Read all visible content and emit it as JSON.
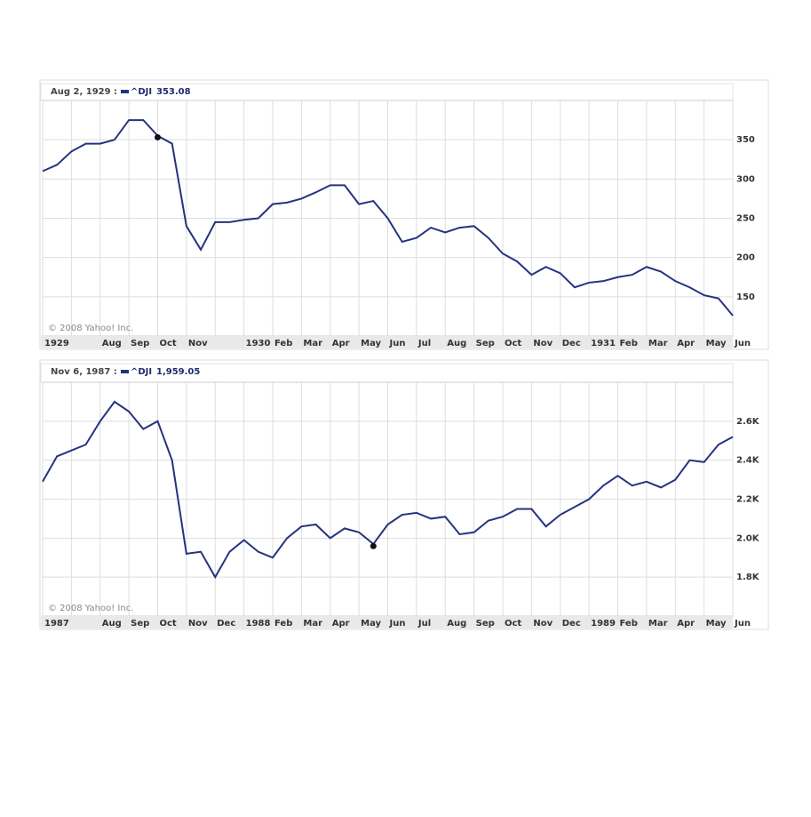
{
  "chart_data": [
    {
      "type": "line",
      "cursor": {
        "label": "Aug 2, 1929 :",
        "value": 353.08
      },
      "copyright": "© 2008 Yahoo! Inc.",
      "categories": [
        "1929",
        null,
        null,
        null,
        "Aug",
        null,
        "Sep",
        null,
        "Oct",
        null,
        "Nov",
        null,
        null,
        null,
        "1930",
        null,
        "Feb",
        null,
        "Mar",
        null,
        "Apr",
        null,
        "May",
        null,
        "Jun",
        null,
        "Jul",
        null,
        "Aug",
        null,
        "Sep",
        null,
        "Oct",
        null,
        "Nov",
        null,
        "Dec",
        null,
        "1931",
        null,
        "Feb",
        null,
        "Mar",
        null,
        "Apr",
        null,
        "May",
        null,
        "Jun"
      ],
      "series": [
        {
          "name": "^DJI",
          "color": "#25337f",
          "values": [
            310,
            318,
            335,
            345,
            345,
            350,
            375,
            375,
            355,
            345,
            240,
            210,
            245,
            245,
            248,
            250,
            268,
            270,
            275,
            283,
            292,
            292,
            268,
            272,
            250,
            220,
            225,
            238,
            232,
            238,
            240,
            225,
            205,
            195,
            178,
            188,
            180,
            162,
            168,
            170,
            175,
            178,
            188,
            182,
            170,
            162,
            152,
            148,
            126
          ]
        }
      ],
      "ylim": [
        100,
        400
      ],
      "yticks": [
        150,
        200,
        250,
        300,
        350
      ],
      "grid": true
    },
    {
      "type": "line",
      "cursor": {
        "label": "Nov 6, 1987 :",
        "value": 1959.05,
        "value_label": "1,959.05"
      },
      "copyright": "© 2008 Yahoo! Inc.",
      "categories": [
        "1987",
        null,
        null,
        null,
        "Aug",
        null,
        "Sep",
        null,
        "Oct",
        null,
        "Nov",
        null,
        "Dec",
        null,
        "1988",
        null,
        "Feb",
        null,
        "Mar",
        null,
        "Apr",
        null,
        "May",
        null,
        "Jun",
        null,
        "Jul",
        null,
        "Aug",
        null,
        "Sep",
        null,
        "Oct",
        null,
        "Nov",
        null,
        "Dec",
        null,
        "1989",
        null,
        "Feb",
        null,
        "Mar",
        null,
        "Apr",
        null,
        "May",
        null,
        "Jun"
      ],
      "series": [
        {
          "name": "^DJI",
          "color": "#25337f",
          "values": [
            2290,
            2420,
            2450,
            2480,
            2600,
            2700,
            2650,
            2560,
            2600,
            2400,
            1920,
            1930,
            1800,
            1930,
            1990,
            1930,
            1900,
            2000,
            2060,
            2070,
            2000,
            2050,
            2030,
            1970,
            2070,
            2120,
            2130,
            2100,
            2110,
            2020,
            2030,
            2090,
            2110,
            2150,
            2150,
            2060,
            2120,
            2160,
            2200,
            2270,
            2320,
            2270,
            2290,
            2260,
            2300,
            2400,
            2390,
            2480,
            2520
          ]
        }
      ],
      "ylim": [
        1600,
        2800
      ],
      "yticks": [
        {
          "value": 1800,
          "label": "1.8K"
        },
        {
          "value": 2000,
          "label": "2.0K"
        },
        {
          "value": 2200,
          "label": "2.2K"
        },
        {
          "value": 2400,
          "label": "2.4K"
        },
        {
          "value": 2600,
          "label": "2.6K"
        }
      ],
      "grid": true
    }
  ]
}
